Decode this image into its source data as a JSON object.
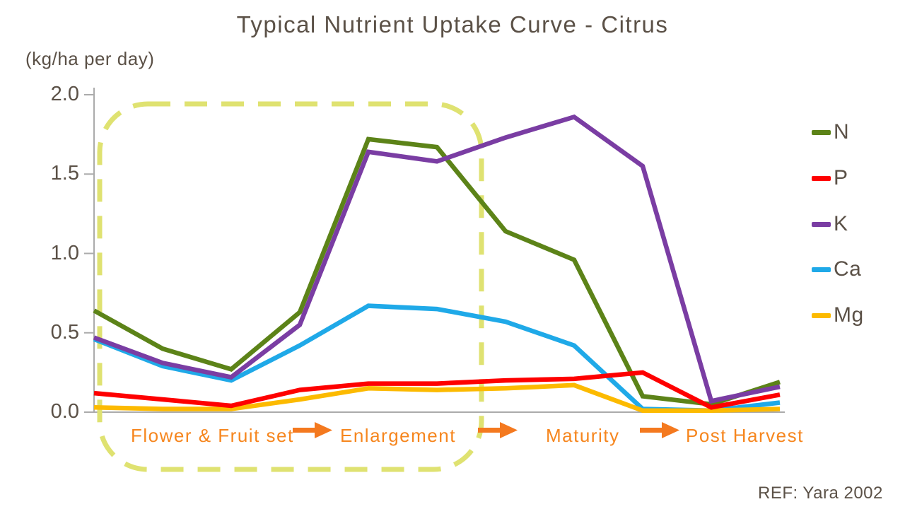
{
  "title": "Typical Nutrient Uptake Curve - Citrus",
  "y_axis": {
    "unit_label": "(kg/ha per day)",
    "tick_labels": [
      "2.0",
      "1.5",
      "1.0",
      "0.5",
      "0.0"
    ]
  },
  "reference": "REF: Yara 2002",
  "phases": [
    {
      "label": "Flower & Fruit set"
    },
    {
      "label": "Enlargement"
    },
    {
      "label": "Maturity"
    },
    {
      "label": "Post Harvest"
    }
  ],
  "legend": [
    "N",
    "P",
    "K",
    "Ca",
    "Mg"
  ],
  "colors": {
    "N": "#5c8318",
    "P": "#fe0000",
    "K": "#7a3da3",
    "Ca": "#1fa9e8",
    "Mg": "#fcba00",
    "text": "#5b5147",
    "phase_text": "#f6861e",
    "arrow": "#f4791f",
    "axis": "#ababab",
    "highlight_box": "#dfe271"
  },
  "chart_data": {
    "type": "line",
    "title": "Typical Nutrient Uptake Curve - Citrus",
    "ylabel": "(kg/ha per day)",
    "ylim": [
      0,
      2
    ],
    "y_ticks": [
      0,
      0.5,
      1.0,
      1.5,
      2.0
    ],
    "x_description": "11 evenly spaced unlabeled time points spanning the growth phases Flower & Fruit set, Enlargement, Maturity, Post Harvest",
    "x": [
      1,
      2,
      3,
      4,
      5,
      6,
      7,
      8,
      9,
      10,
      11
    ],
    "series": [
      {
        "name": "N",
        "color": "#5c8318",
        "values": [
          0.64,
          0.4,
          0.27,
          0.63,
          1.72,
          1.67,
          1.14,
          0.96,
          0.1,
          0.05,
          0.19
        ]
      },
      {
        "name": "P",
        "color": "#fe0000",
        "values": [
          0.12,
          0.08,
          0.04,
          0.14,
          0.18,
          0.18,
          0.2,
          0.21,
          0.25,
          0.03,
          0.11
        ]
      },
      {
        "name": "K",
        "color": "#7a3da3",
        "values": [
          0.47,
          0.31,
          0.22,
          0.55,
          1.64,
          1.58,
          1.73,
          1.86,
          1.55,
          0.07,
          0.16
        ]
      },
      {
        "name": "Ca",
        "color": "#1fa9e8",
        "values": [
          0.46,
          0.29,
          0.2,
          0.42,
          0.67,
          0.65,
          0.57,
          0.42,
          0.02,
          0.01,
          0.06
        ]
      },
      {
        "name": "Mg",
        "color": "#fcba00",
        "values": [
          0.03,
          0.02,
          0.02,
          0.08,
          0.15,
          0.14,
          0.15,
          0.17,
          0.01,
          0.01,
          0.02
        ]
      }
    ],
    "legend_position": "right",
    "grid": false,
    "phase_annotations": [
      "Flower & Fruit set",
      "Enlargement",
      "Maturity",
      "Post Harvest"
    ],
    "highlight_box_phases": [
      "Flower & Fruit set",
      "Enlargement"
    ]
  }
}
